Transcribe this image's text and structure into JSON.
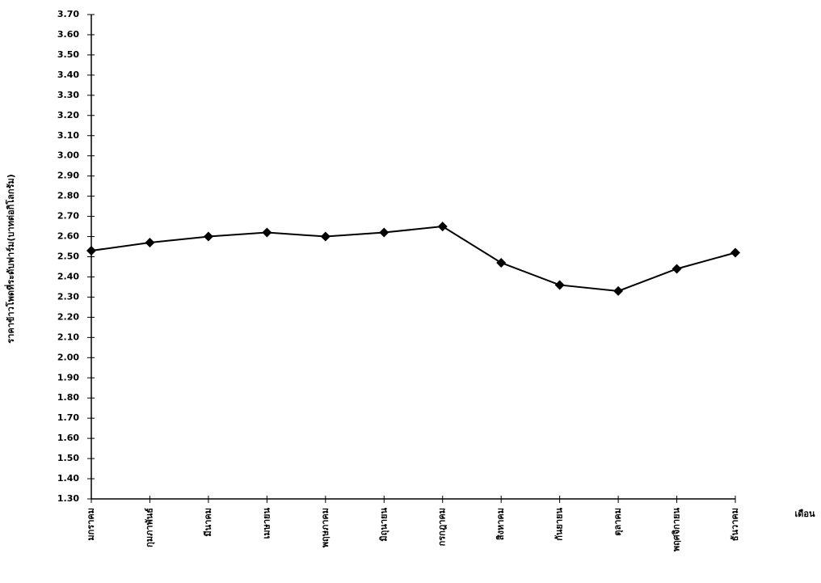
{
  "chart_data": {
    "type": "line",
    "y_label": "ราคาข้าวโพดที่ระดับฟาร์ม(บาทต่อกิโลกรัม)",
    "x_label": "เดือน",
    "categories": [
      "มกราคม",
      "กุมภาพันธ์",
      "มีนาคม",
      "เมษายน",
      "พฤษภาคม",
      "มิถุนายน",
      "กรกฎาคม",
      "สิงหาคม",
      "กันยายน",
      "ตุลาคม",
      "พฤศจิกายน",
      "ธันวาคม"
    ],
    "values": [
      2.53,
      2.57,
      2.6,
      2.62,
      2.6,
      2.62,
      2.65,
      2.47,
      2.36,
      2.33,
      2.44,
      2.52
    ],
    "color": "#000000",
    "ylim": [
      1.3,
      3.7
    ],
    "yticks": [
      {
        "value": 1.3,
        "label": "1.30"
      },
      {
        "value": 1.4,
        "label": "1.40"
      },
      {
        "value": 1.5,
        "label": "1.50"
      },
      {
        "value": 1.6,
        "label": "1.60"
      },
      {
        "value": 1.7,
        "label": "1.70"
      },
      {
        "value": 1.8,
        "label": "1.80"
      },
      {
        "value": 1.9,
        "label": "1.90"
      },
      {
        "value": 2.0,
        "label": "2.00"
      },
      {
        "value": 2.1,
        "label": "2.10"
      },
      {
        "value": 2.2,
        "label": "2.20"
      },
      {
        "value": 2.3,
        "label": "2.30"
      },
      {
        "value": 2.4,
        "label": "2.40"
      },
      {
        "value": 2.5,
        "label": "2.50"
      },
      {
        "value": 2.6,
        "label": "2.60"
      },
      {
        "value": 2.7,
        "label": "2.70"
      },
      {
        "value": 2.8,
        "label": "2.80"
      },
      {
        "value": 2.9,
        "label": "2.90"
      },
      {
        "value": 3.0,
        "label": "3.00"
      },
      {
        "value": 3.1,
        "label": "3.10"
      },
      {
        "value": 3.2,
        "label": "3.20"
      },
      {
        "value": 3.3,
        "label": "3.30"
      },
      {
        "value": 3.4,
        "label": "3.40"
      },
      {
        "value": 3.5,
        "label": "3.50"
      },
      {
        "value": 3.6,
        "label": "3.60"
      },
      {
        "value": 3.7,
        "label": "3.70"
      }
    ],
    "grid": false
  }
}
